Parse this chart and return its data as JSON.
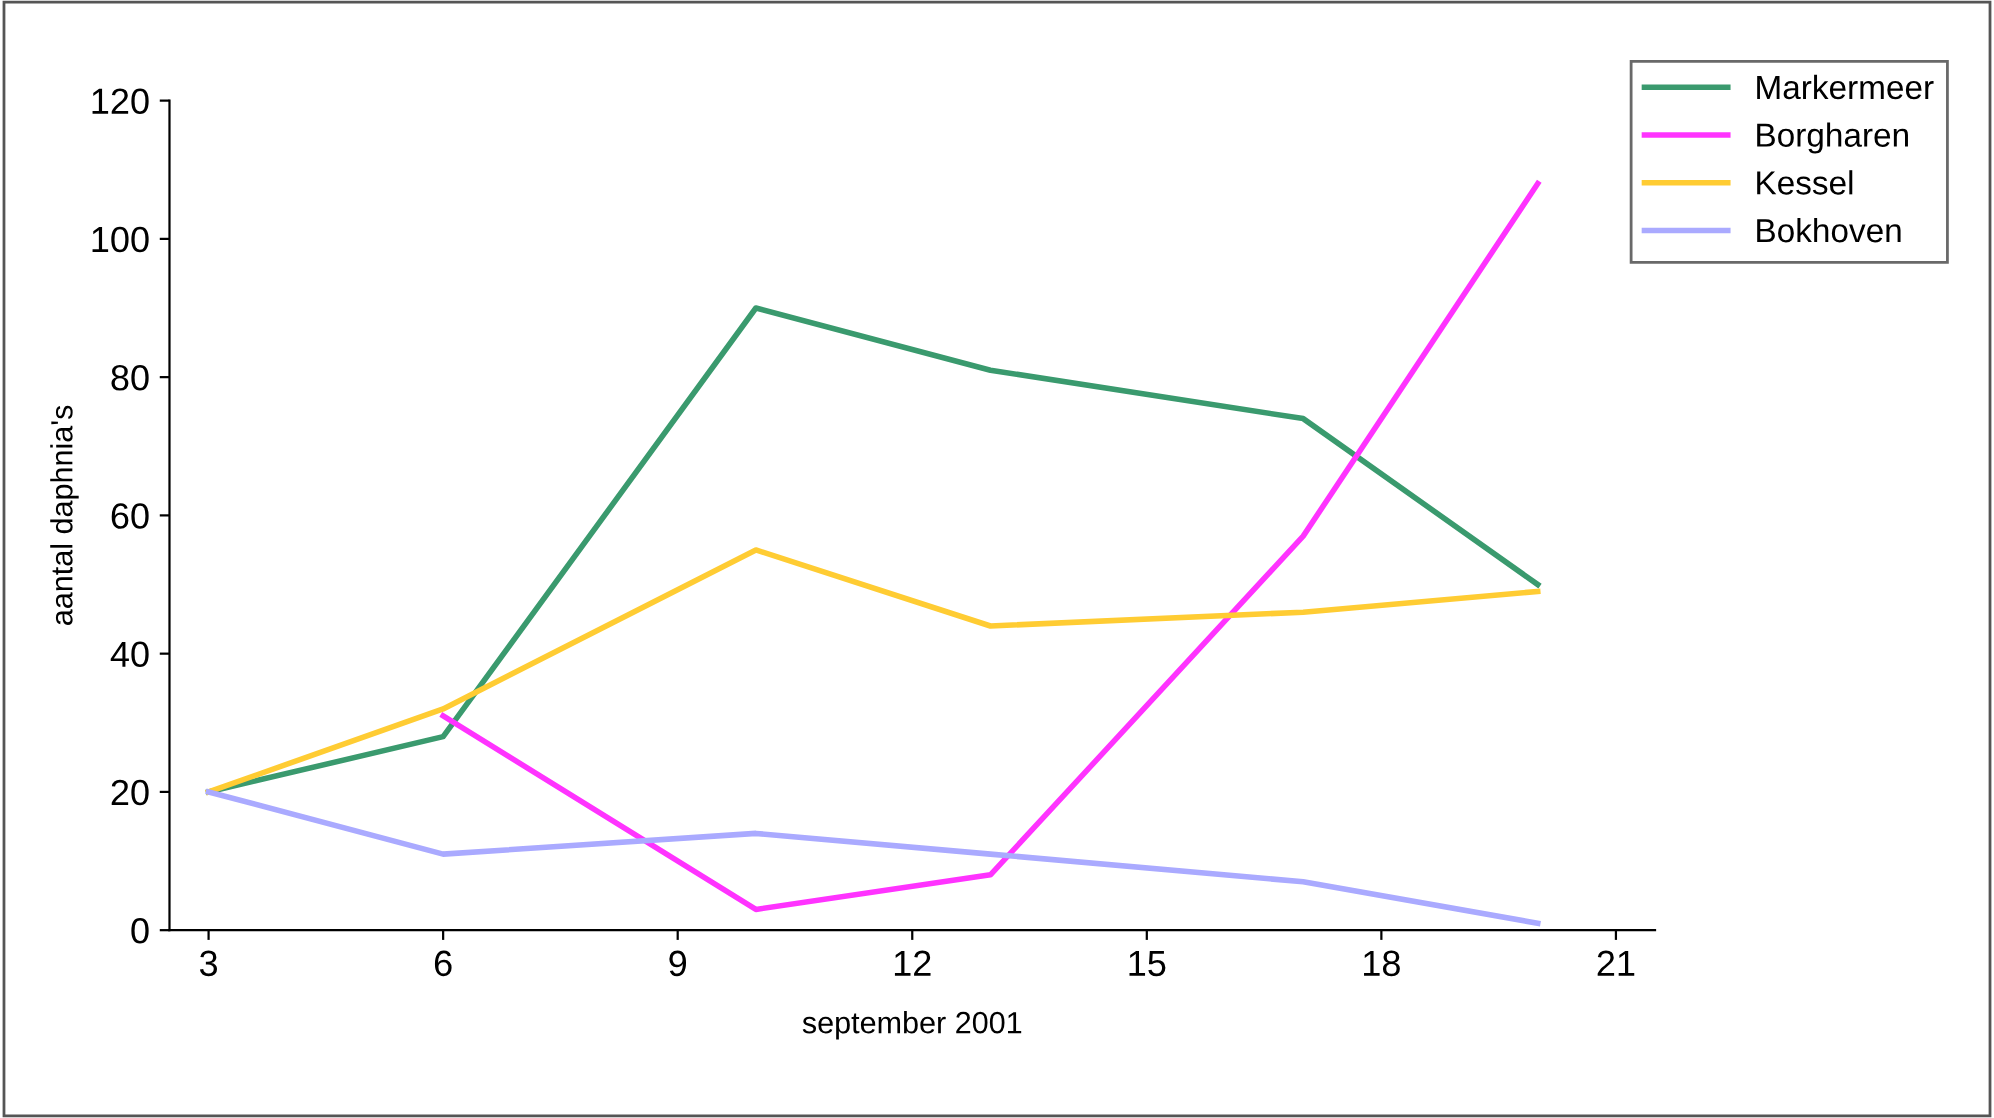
{
  "chart_data": {
    "type": "line",
    "xlabel": "september 2001",
    "ylabel": "aantal daphnia's",
    "xlim": [
      2.5,
      21.5
    ],
    "xticks": [
      3,
      6,
      9,
      12,
      15,
      18,
      21
    ],
    "ylim": [
      0,
      120
    ],
    "yticks": [
      0,
      20,
      40,
      60,
      80,
      100,
      120
    ],
    "grid": false,
    "legend": "top right",
    "marker": "none",
    "line_style": "solid",
    "series": [
      {
        "name": "Markermeer",
        "color": "#3a9a6e",
        "x": [
          3,
          6,
          10,
          13,
          17,
          20
        ],
        "values": [
          20,
          28,
          90,
          81,
          74,
          50
        ]
      },
      {
        "name": "Borgharen",
        "color": "#ff33ff",
        "x": [
          6,
          10,
          13,
          17,
          20
        ],
        "values": [
          31,
          3,
          8,
          57,
          108
        ]
      },
      {
        "name": "Kessel",
        "color": "#ffcc33",
        "x": [
          3,
          6,
          10,
          13,
          17,
          20
        ],
        "values": [
          20,
          32,
          55,
          44,
          46,
          49
        ]
      },
      {
        "name": "Bokhoven",
        "color": "#aaaaff",
        "x": [
          3,
          6,
          10,
          13,
          17,
          20
        ],
        "values": [
          20,
          11,
          14,
          11,
          7,
          1
        ]
      }
    ]
  }
}
